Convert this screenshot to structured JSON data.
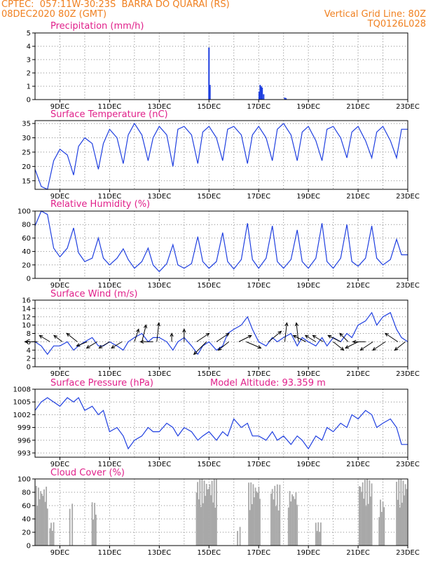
{
  "header": {
    "line1": "CPTEC:  057:11W-30:23S  BARRA DO QUARAI (RS)",
    "line2_left": "08DEC2020 80Z (GMT)",
    "line2_right": "Vertical Grid Line: 80Z",
    "line3_right": "TQ0126L028"
  },
  "colors": {
    "header": "#f08020",
    "title": "#e0208a",
    "line": "#1f3fe0",
    "cloud": "#a8a8a8"
  },
  "chart_data": [
    {
      "type": "bar",
      "title": "Precipitation (mm/h)",
      "x_ticks": [
        "9DEC",
        "11DEC",
        "13DEC",
        "15DEC",
        "17DEC",
        "19DEC",
        "21DEC",
        "23DEC"
      ],
      "ylim": [
        0,
        5
      ],
      "y_ticks": [
        "0",
        "1",
        "2",
        "3",
        "4",
        "5"
      ],
      "grid": true,
      "bars": [
        {
          "day": 15.0,
          "value": 3.9
        },
        {
          "day": 15.04,
          "value": 1.1
        },
        {
          "day": 17.02,
          "value": 0.6
        },
        {
          "day": 17.06,
          "value": 1.1
        },
        {
          "day": 17.1,
          "value": 1.0
        },
        {
          "day": 17.14,
          "value": 0.9
        },
        {
          "day": 17.2,
          "value": 0.4
        },
        {
          "day": 18.05,
          "value": 0.15
        },
        {
          "day": 18.1,
          "value": 0.1
        }
      ]
    },
    {
      "type": "line",
      "title": "Surface Temperature (nC)",
      "x_ticks": [
        "9DEC",
        "11DEC",
        "13DEC",
        "15DEC",
        "17DEC",
        "19DEC",
        "21DEC",
        "23DEC"
      ],
      "ylim": [
        12,
        36
      ],
      "y_ticks": [
        "15",
        "20",
        "25",
        "30",
        "35"
      ],
      "grid": true,
      "x": [
        8.0,
        8.25,
        8.5,
        8.75,
        9.0,
        9.3,
        9.55,
        9.75,
        10.0,
        10.3,
        10.55,
        10.75,
        11.0,
        11.3,
        11.55,
        11.75,
        12.0,
        12.3,
        12.55,
        12.75,
        13.0,
        13.3,
        13.55,
        13.75,
        14.0,
        14.3,
        14.55,
        14.75,
        15.0,
        15.3,
        15.55,
        15.75,
        16.0,
        16.3,
        16.55,
        16.75,
        17.0,
        17.3,
        17.55,
        17.75,
        18.0,
        18.3,
        18.55,
        18.75,
        19.0,
        19.3,
        19.55,
        19.75,
        20.0,
        20.3,
        20.55,
        20.75,
        21.0,
        21.3,
        21.55,
        21.75,
        22.0,
        22.3,
        22.55,
        22.75,
        23.0
      ],
      "values": [
        19,
        13,
        12,
        22,
        26,
        24,
        17,
        27,
        30,
        28,
        19,
        28,
        33,
        30,
        21,
        31,
        35,
        31,
        22,
        30,
        34,
        31,
        20,
        33,
        34,
        31,
        21,
        32,
        34,
        30,
        22,
        33,
        34,
        31,
        21,
        31,
        34,
        30,
        22,
        33,
        35,
        31,
        22,
        32,
        34,
        29,
        22,
        33,
        34,
        30,
        23,
        32,
        34,
        29,
        23,
        32,
        34,
        29,
        23,
        33,
        33
      ]
    },
    {
      "type": "line",
      "title": "Relative Humidity (%)",
      "x_ticks": [
        "9DEC",
        "11DEC",
        "13DEC",
        "15DEC",
        "17DEC",
        "19DEC",
        "21DEC",
        "23DEC"
      ],
      "ylim": [
        0,
        100
      ],
      "y_ticks": [
        "0",
        "20",
        "40",
        "60",
        "80",
        "100"
      ],
      "grid": true,
      "x": [
        8.0,
        8.25,
        8.5,
        8.75,
        9.0,
        9.3,
        9.55,
        9.75,
        10.0,
        10.3,
        10.55,
        10.75,
        11.0,
        11.3,
        11.55,
        11.75,
        12.0,
        12.3,
        12.55,
        12.75,
        13.0,
        13.3,
        13.55,
        13.75,
        14.0,
        14.3,
        14.55,
        14.75,
        15.0,
        15.3,
        15.55,
        15.75,
        16.0,
        16.3,
        16.55,
        16.75,
        17.0,
        17.3,
        17.55,
        17.75,
        18.0,
        18.3,
        18.55,
        18.75,
        19.0,
        19.3,
        19.55,
        19.75,
        20.0,
        20.3,
        20.55,
        20.75,
        21.0,
        21.3,
        21.55,
        21.75,
        22.0,
        22.3,
        22.55,
        22.75,
        23.0
      ],
      "values": [
        78,
        100,
        95,
        45,
        32,
        45,
        75,
        38,
        25,
        30,
        60,
        30,
        20,
        30,
        44,
        28,
        15,
        25,
        45,
        20,
        10,
        22,
        50,
        20,
        15,
        22,
        62,
        25,
        15,
        25,
        68,
        25,
        14,
        28,
        82,
        28,
        15,
        30,
        78,
        25,
        15,
        28,
        72,
        25,
        15,
        30,
        82,
        25,
        15,
        30,
        80,
        25,
        18,
        30,
        78,
        30,
        20,
        28,
        58,
        35,
        35
      ]
    },
    {
      "type": "line",
      "title": "Surface Wind (m/s)",
      "x_ticks": [
        "9DEC",
        "11DEC",
        "13DEC",
        "15DEC",
        "17DEC",
        "19DEC",
        "21DEC",
        "23DEC"
      ],
      "ylim": [
        0,
        16
      ],
      "y_ticks": [
        "0",
        "2",
        "4",
        "6",
        "8",
        "10",
        "12",
        "14",
        "16"
      ],
      "grid": true,
      "x": [
        8.0,
        8.25,
        8.5,
        8.75,
        9.0,
        9.3,
        9.55,
        9.75,
        10.0,
        10.3,
        10.55,
        10.75,
        11.0,
        11.3,
        11.55,
        11.75,
        12.0,
        12.3,
        12.55,
        12.75,
        13.0,
        13.3,
        13.55,
        13.75,
        14.0,
        14.3,
        14.55,
        14.75,
        15.0,
        15.3,
        15.55,
        15.75,
        16.0,
        16.3,
        16.55,
        16.75,
        17.0,
        17.3,
        17.55,
        17.75,
        18.0,
        18.3,
        18.55,
        18.75,
        19.0,
        19.3,
        19.55,
        19.75,
        20.0,
        20.3,
        20.55,
        20.75,
        21.0,
        21.3,
        21.55,
        21.75,
        22.0,
        22.3,
        22.55,
        22.75,
        23.0
      ],
      "values": [
        6,
        5,
        3,
        5,
        5,
        6,
        4,
        5,
        6,
        7,
        5,
        5,
        6,
        5,
        4,
        6,
        7,
        8,
        6,
        7,
        7,
        6,
        4,
        6,
        7,
        5,
        3,
        5,
        6,
        4,
        5,
        8,
        9,
        10,
        12,
        9,
        6,
        5,
        7,
        6,
        7,
        8,
        5,
        7,
        6,
        5,
        7,
        5,
        7,
        6,
        8,
        7,
        10,
        11,
        13,
        10,
        12,
        13,
        9,
        7,
        6
      ],
      "vectors": [
        {
          "day": 8.1,
          "u": -6,
          "v": 0
        },
        {
          "day": 8.6,
          "u": -5,
          "v": 3
        },
        {
          "day": 9.1,
          "u": -4,
          "v": 3
        },
        {
          "day": 9.7,
          "u": -5,
          "v": 4
        },
        {
          "day": 10.1,
          "u": -5,
          "v": -2
        },
        {
          "day": 10.5,
          "u": -5,
          "v": -3
        },
        {
          "day": 11.0,
          "u": -5,
          "v": -3
        },
        {
          "day": 11.5,
          "u": -5,
          "v": -3
        },
        {
          "day": 12.0,
          "u": 2,
          "v": 6
        },
        {
          "day": 12.3,
          "u": 2,
          "v": 8
        },
        {
          "day": 12.75,
          "u": -6,
          "v": 0
        },
        {
          "day": 12.9,
          "u": 1,
          "v": 9
        },
        {
          "day": 13.5,
          "u": 0,
          "v": 4
        },
        {
          "day": 14.0,
          "u": 0,
          "v": 6
        },
        {
          "day": 14.5,
          "u": 6,
          "v": 4
        },
        {
          "day": 14.9,
          "u": -6,
          "v": -6
        },
        {
          "day": 15.3,
          "u": 6,
          "v": 4
        },
        {
          "day": 15.8,
          "u": -5,
          "v": -4
        },
        {
          "day": 16.2,
          "u": 6,
          "v": 3
        },
        {
          "day": 16.5,
          "u": 7,
          "v": -3
        },
        {
          "day": 17.4,
          "u": 6,
          "v": 5
        },
        {
          "day": 18.05,
          "u": 1,
          "v": 9
        },
        {
          "day": 18.6,
          "u": -1,
          "v": 9
        },
        {
          "day": 18.9,
          "u": -6,
          "v": 3
        },
        {
          "day": 19.3,
          "u": -5,
          "v": 3
        },
        {
          "day": 19.6,
          "u": -5,
          "v": 3
        },
        {
          "day": 20.0,
          "u": 5,
          "v": -4
        },
        {
          "day": 20.3,
          "u": -6,
          "v": 3
        },
        {
          "day": 20.6,
          "u": -4,
          "v": 4
        },
        {
          "day": 21.0,
          "u": -6,
          "v": -3
        },
        {
          "day": 21.3,
          "u": -6,
          "v": 0
        },
        {
          "day": 21.6,
          "u": -6,
          "v": -4
        },
        {
          "day": 22.1,
          "u": -6,
          "v": -4
        },
        {
          "day": 22.6,
          "u": -6,
          "v": 4
        },
        {
          "day": 22.9,
          "u": -5,
          "v": -4
        }
      ]
    },
    {
      "type": "line",
      "title": "Surface Pressure (hPa)",
      "annotation": "Model Altitude: 93.359 m",
      "x_ticks": [
        "9DEC",
        "11DEC",
        "13DEC",
        "15DEC",
        "17DEC",
        "19DEC",
        "21DEC",
        "23DEC"
      ],
      "ylim": [
        992,
        1008
      ],
      "y_ticks": [
        "993",
        "996",
        "999",
        "1002",
        "1005",
        "1008"
      ],
      "grid": true,
      "x": [
        8.0,
        8.25,
        8.5,
        8.75,
        9.0,
        9.3,
        9.55,
        9.75,
        10.0,
        10.3,
        10.55,
        10.75,
        11.0,
        11.3,
        11.55,
        11.75,
        12.0,
        12.3,
        12.55,
        12.75,
        13.0,
        13.3,
        13.55,
        13.75,
        14.0,
        14.3,
        14.55,
        14.75,
        15.0,
        15.3,
        15.55,
        15.75,
        16.0,
        16.3,
        16.55,
        16.75,
        17.0,
        17.3,
        17.55,
        17.75,
        18.0,
        18.3,
        18.55,
        18.75,
        19.0,
        19.3,
        19.55,
        19.75,
        20.0,
        20.3,
        20.55,
        20.75,
        21.0,
        21.3,
        21.55,
        21.75,
        22.0,
        22.3,
        22.55,
        22.75,
        23.0
      ],
      "values": [
        1003,
        1005,
        1006,
        1005,
        1004,
        1006,
        1005,
        1006,
        1003,
        1004,
        1002,
        1003,
        998,
        999,
        997,
        994,
        996,
        997,
        999,
        998,
        998,
        1000,
        999,
        997,
        999,
        998,
        996,
        997,
        998,
        996,
        998,
        997,
        1001,
        999,
        1000,
        997,
        997,
        996,
        998,
        996,
        997,
        995,
        997,
        996,
        994,
        997,
        996,
        999,
        998,
        1000,
        999,
        1002,
        1001,
        1003,
        1002,
        999,
        1000,
        1001,
        999,
        995,
        995
      ]
    },
    {
      "type": "bar",
      "title": "Cloud Cover (%)",
      "x_ticks": [
        "9DEC",
        "11DEC",
        "13DEC",
        "15DEC",
        "17DEC",
        "19DEC",
        "21DEC",
        "23DEC"
      ],
      "ylim": [
        0,
        100
      ],
      "y_ticks": [
        "0",
        "20",
        "40",
        "60",
        "80",
        "100"
      ],
      "grid": true,
      "clusters": [
        {
          "start": 8.05,
          "end": 8.5,
          "peak": 90
        },
        {
          "start": 8.6,
          "end": 8.75,
          "peak": 35
        },
        {
          "start": 9.4,
          "end": 9.5,
          "peak": 70
        },
        {
          "start": 10.3,
          "end": 10.45,
          "peak": 65
        },
        {
          "start": 14.5,
          "end": 15.3,
          "peak": 100
        },
        {
          "start": 16.15,
          "end": 16.25,
          "peak": 30
        },
        {
          "start": 16.6,
          "end": 17.05,
          "peak": 95
        },
        {
          "start": 17.5,
          "end": 17.85,
          "peak": 92
        },
        {
          "start": 18.2,
          "end": 18.55,
          "peak": 85
        },
        {
          "start": 19.3,
          "end": 19.5,
          "peak": 35
        },
        {
          "start": 21.05,
          "end": 21.55,
          "peak": 100
        },
        {
          "start": 21.85,
          "end": 22.05,
          "peak": 70
        },
        {
          "start": 22.55,
          "end": 22.95,
          "peak": 100
        }
      ]
    }
  ]
}
